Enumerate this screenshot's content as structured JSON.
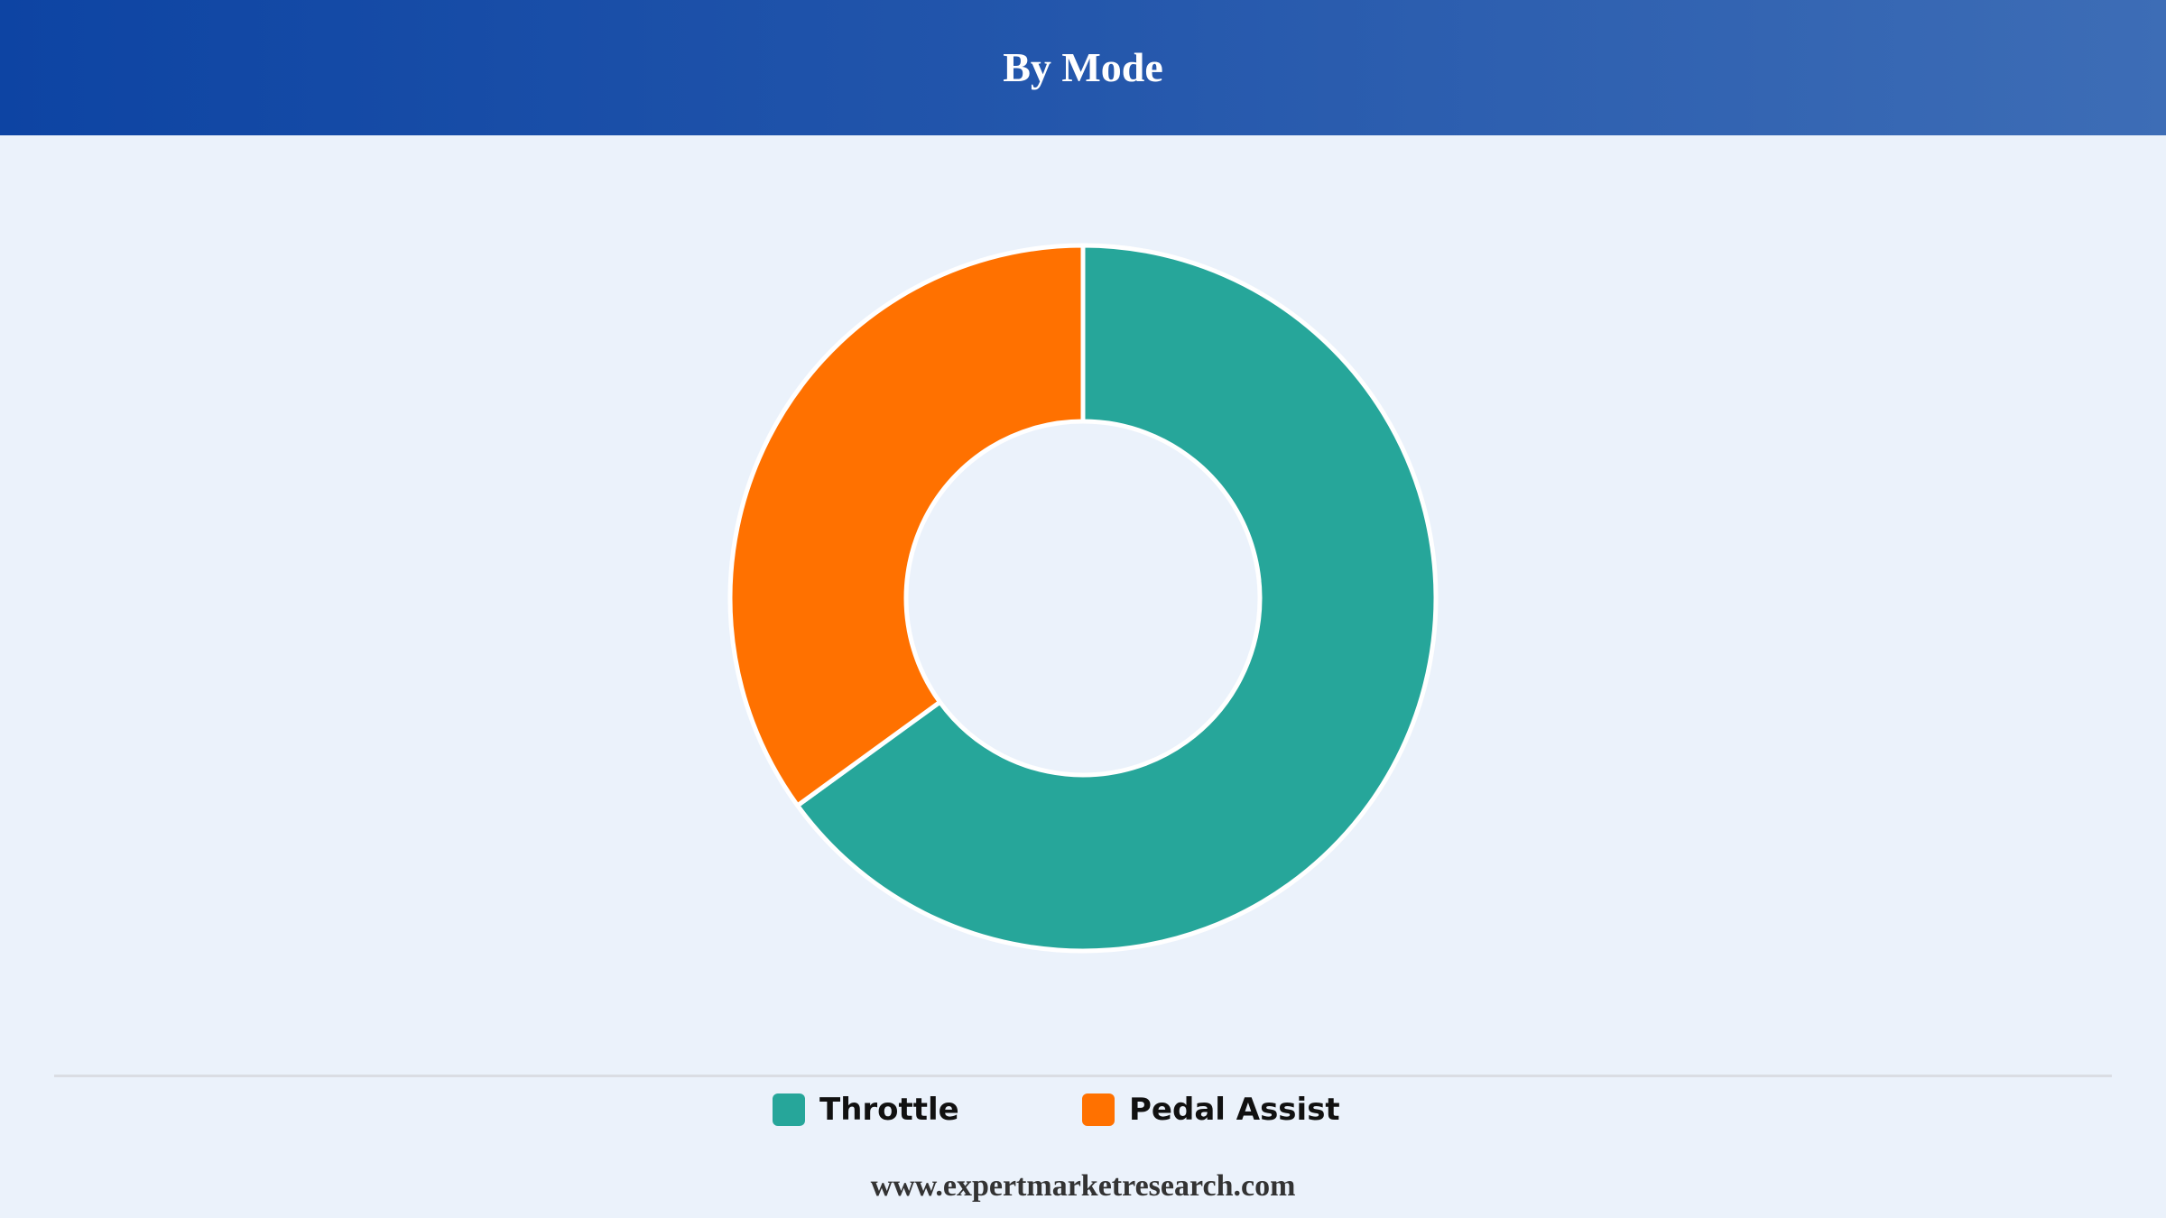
{
  "header": {
    "title": "By Mode"
  },
  "chart_data": {
    "type": "pie",
    "donut": true,
    "title": "By Mode",
    "categories": [
      "Throttle",
      "Pedal Assist"
    ],
    "values": [
      65,
      35
    ],
    "colors": [
      "#26a69a",
      "#ff7100"
    ],
    "legend_position": "bottom"
  },
  "legend": {
    "items": [
      {
        "label": "Throttle",
        "color": "#26a69a"
      },
      {
        "label": "Pedal Assist",
        "color": "#ff7100"
      }
    ]
  },
  "footer": {
    "source": "www.expertmarketresearch.com"
  }
}
